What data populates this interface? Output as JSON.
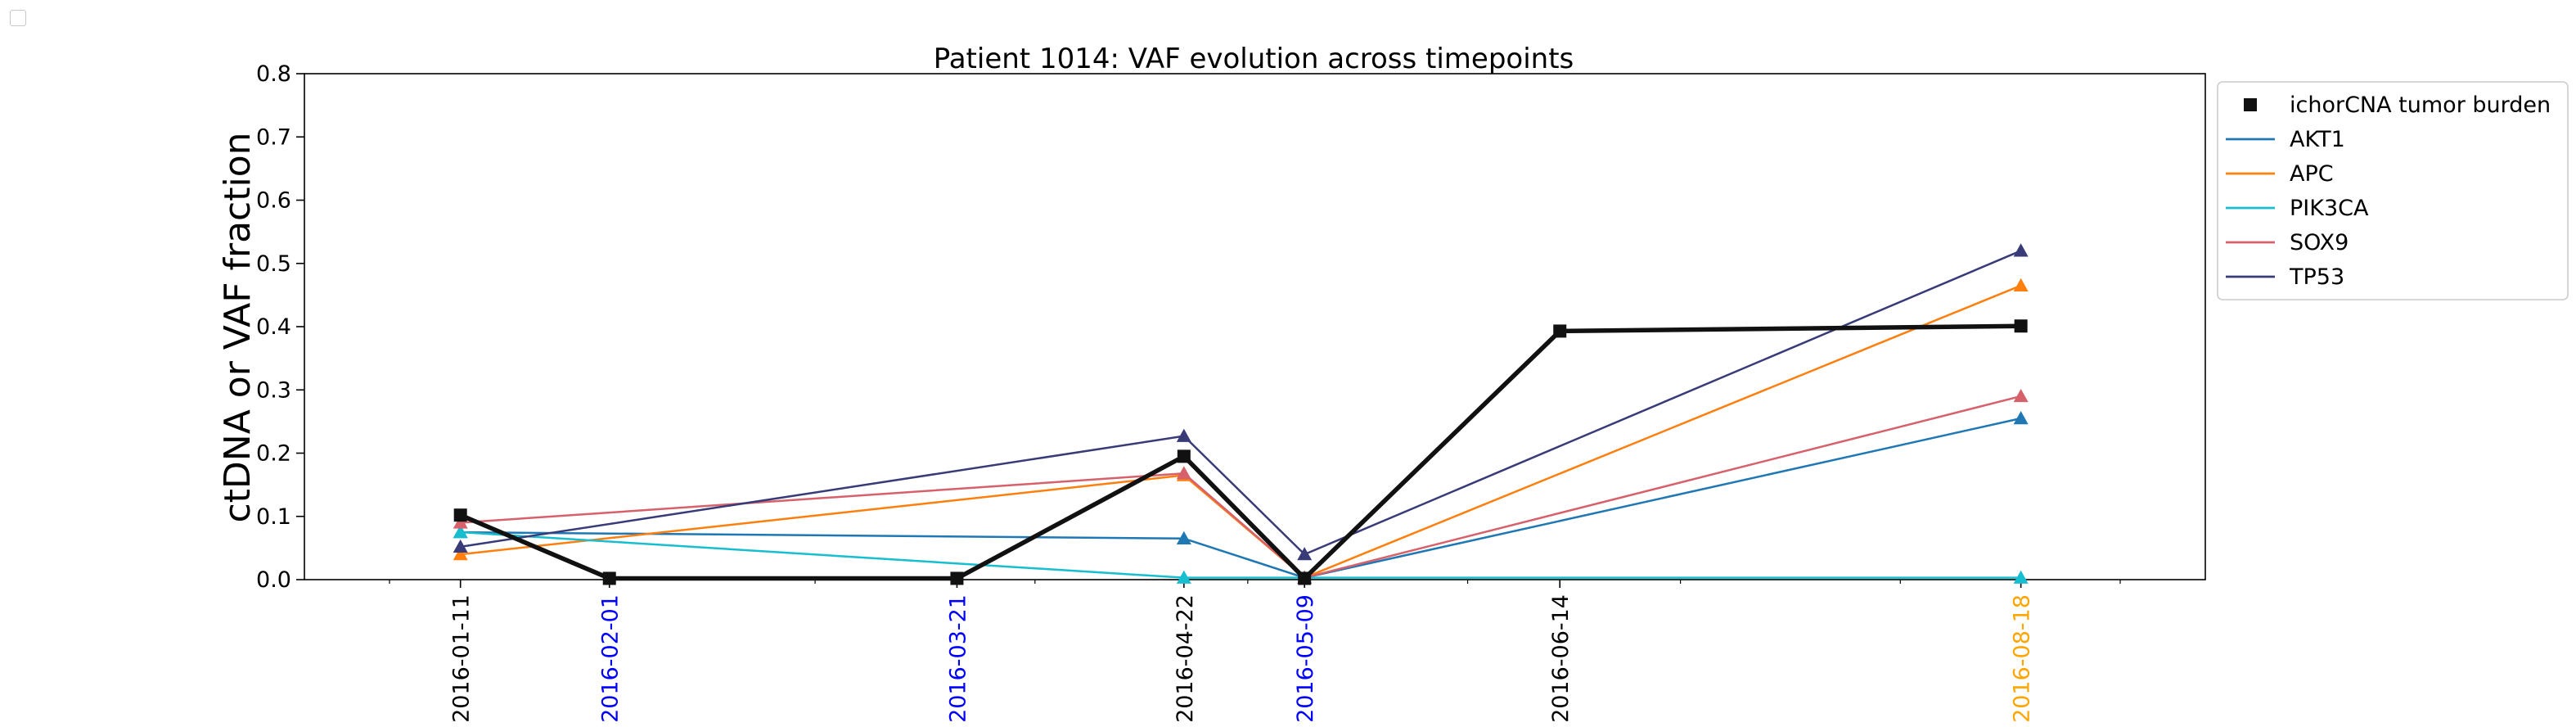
{
  "chart_data": {
    "type": "line",
    "title": "Patient 1014: VAF evolution across timepoints",
    "xlabel": "",
    "ylabel": "ctDNA or VAF fraction",
    "ylim": [
      0,
      0.8
    ],
    "yticks": [
      "0.0",
      "0.1",
      "0.2",
      "0.3",
      "0.4",
      "0.5",
      "0.6",
      "0.7",
      "0.8"
    ],
    "xlim": [
      "2015-12-20",
      "2016-09-13"
    ],
    "x_tick_labels": [
      {
        "date": "2016-01-11",
        "color": "#000000"
      },
      {
        "date": "2016-02-01",
        "color": "#0000ff"
      },
      {
        "date": "2016-03-21",
        "color": "#0000ff"
      },
      {
        "date": "2016-04-22",
        "color": "#000000"
      },
      {
        "date": "2016-05-09",
        "color": "#0000ff"
      },
      {
        "date": "2016-06-14",
        "color": "#000000"
      },
      {
        "date": "2016-08-18",
        "color": "#ffa500"
      }
    ],
    "grid": false,
    "legend_position": "outside upper right",
    "series": [
      {
        "name": "ichorCNA tumor burden",
        "color": "#111111",
        "marker": "square",
        "width": 5.5,
        "x": [
          "2016-01-11",
          "2016-02-01",
          "2016-03-21",
          "2016-04-22",
          "2016-05-09",
          "2016-06-14",
          "2016-08-18"
        ],
        "values": [
          0.102,
          0.002,
          0.002,
          0.195,
          0.002,
          0.393,
          0.401
        ]
      },
      {
        "name": "AKT1",
        "color": "#1f77b4",
        "marker": "triangle",
        "width": 2.5,
        "x": [
          "2016-01-11",
          "2016-04-22",
          "2016-05-09",
          "2016-08-18"
        ],
        "values": [
          0.075,
          0.065,
          0.003,
          0.255
        ]
      },
      {
        "name": "APC",
        "color": "#ff7f0e",
        "marker": "triangle",
        "width": 2.5,
        "x": [
          "2016-01-11",
          "2016-04-22",
          "2016-05-09",
          "2016-08-18"
        ],
        "values": [
          0.04,
          0.165,
          0.003,
          0.465
        ]
      },
      {
        "name": "PIK3CA",
        "color": "#17becf",
        "marker": "triangle",
        "width": 2.5,
        "x": [
          "2016-01-11",
          "2016-04-22",
          "2016-05-09",
          "2016-08-18"
        ],
        "values": [
          0.075,
          0.003,
          0.003,
          0.003
        ]
      },
      {
        "name": "SOX9",
        "color": "#d6616b",
        "marker": "triangle",
        "width": 2.5,
        "x": [
          "2016-01-11",
          "2016-04-22",
          "2016-05-09",
          "2016-08-18"
        ],
        "values": [
          0.09,
          0.168,
          0.003,
          0.29
        ]
      },
      {
        "name": "TP53",
        "color": "#393b79",
        "marker": "triangle",
        "width": 2.5,
        "x": [
          "2016-01-11",
          "2016-04-22",
          "2016-05-09",
          "2016-08-18"
        ],
        "values": [
          0.052,
          0.227,
          0.04,
          0.52
        ]
      }
    ]
  }
}
